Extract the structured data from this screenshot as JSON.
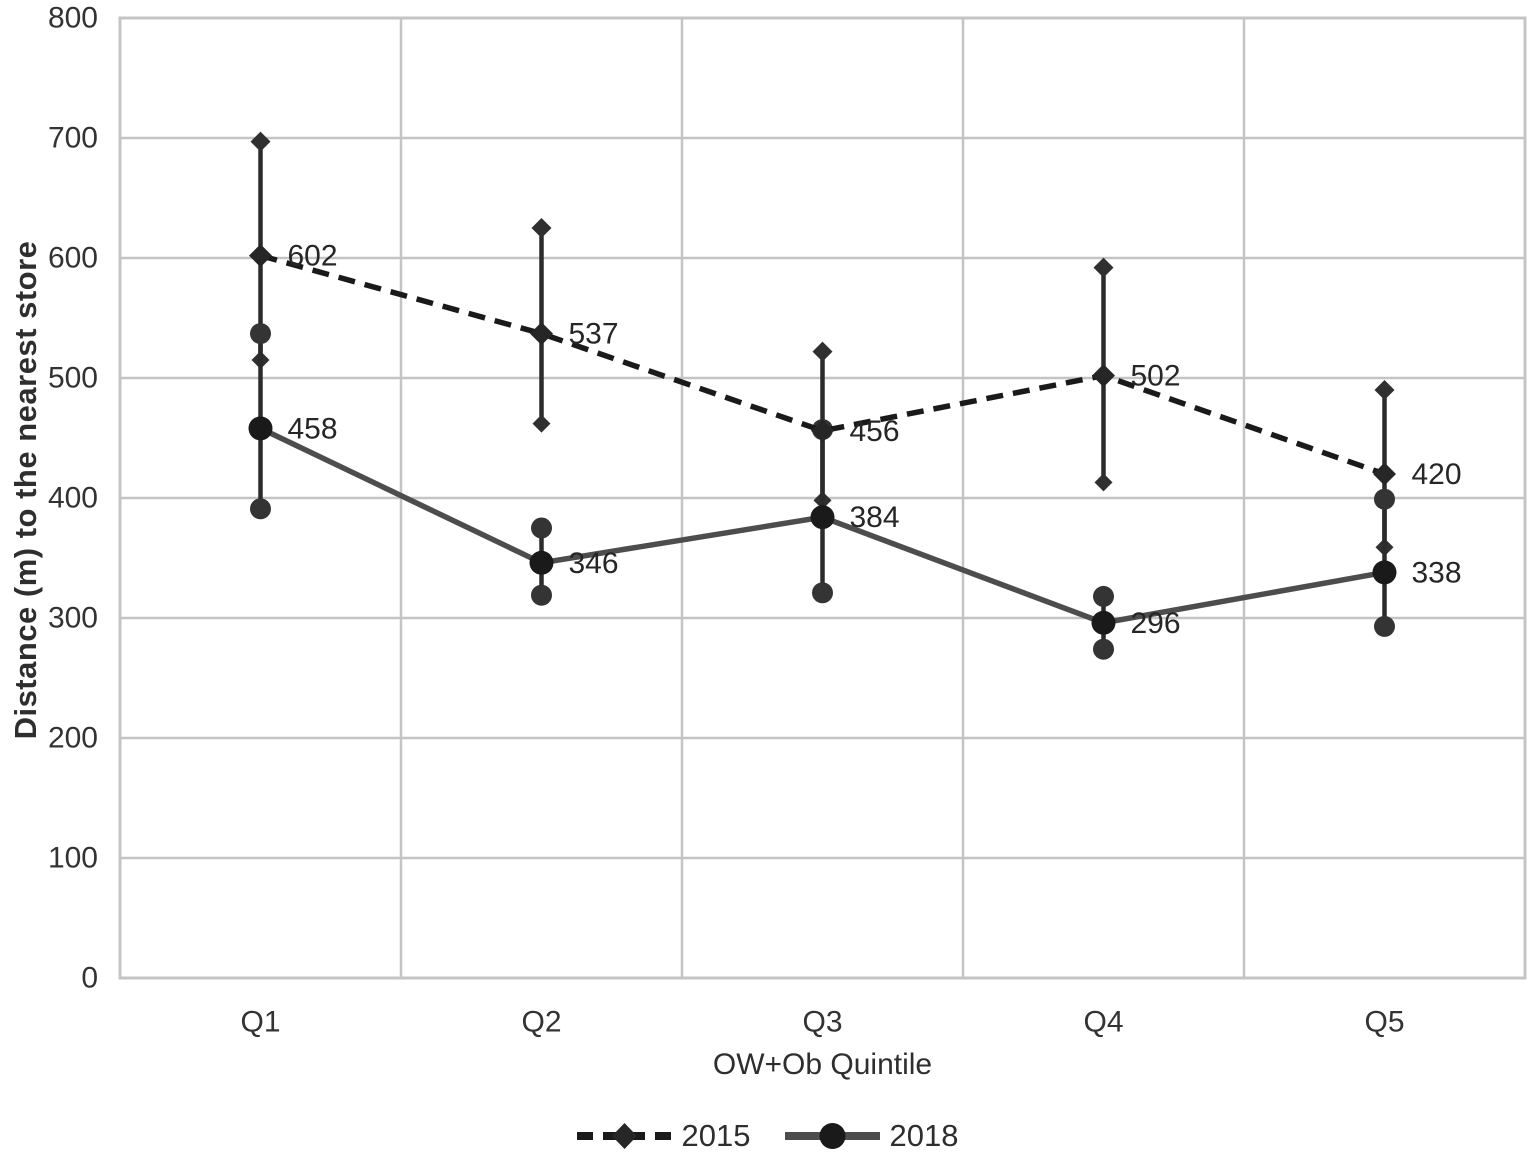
{
  "chart_data": {
    "type": "line",
    "title": "",
    "xlabel": "OW+Ob Quintile",
    "ylabel": "Distance (m)  to the nearest store",
    "categories": [
      "Q1",
      "Q2",
      "Q3",
      "Q4",
      "Q5"
    ],
    "ylim": [
      0,
      800
    ],
    "yticks": [
      0,
      100,
      200,
      300,
      400,
      500,
      600,
      700,
      800
    ],
    "grid": true,
    "legend_position": "bottom-center",
    "series": [
      {
        "name": "2015",
        "line_style": "dashed",
        "marker": "diamond",
        "line_color": "#1a1a1a",
        "marker_color": "#262626",
        "values": [
          602,
          537,
          456,
          502,
          420
        ],
        "data_labels": [
          "602",
          "537",
          "456",
          "502",
          "420"
        ],
        "error_upper": [
          697,
          625,
          522,
          592,
          490
        ],
        "error_lower": [
          515,
          462,
          398,
          413,
          359
        ]
      },
      {
        "name": "2018",
        "line_style": "solid",
        "marker": "circle",
        "line_color": "#4d4d4d",
        "marker_color": "#1a1a1a",
        "values": [
          458,
          346,
          384,
          296,
          338
        ],
        "data_labels": [
          "458",
          "346",
          "384",
          "296",
          "338"
        ],
        "error_upper": [
          537,
          375,
          457,
          318,
          399
        ],
        "error_lower": [
          391,
          319,
          321,
          274,
          293
        ]
      }
    ],
    "colors": {
      "grid": "#c4c4c4",
      "plot_border": "#c4c4c4",
      "error_bar": "#2b2b2b",
      "text": "#333333",
      "background": "#ffffff"
    }
  }
}
